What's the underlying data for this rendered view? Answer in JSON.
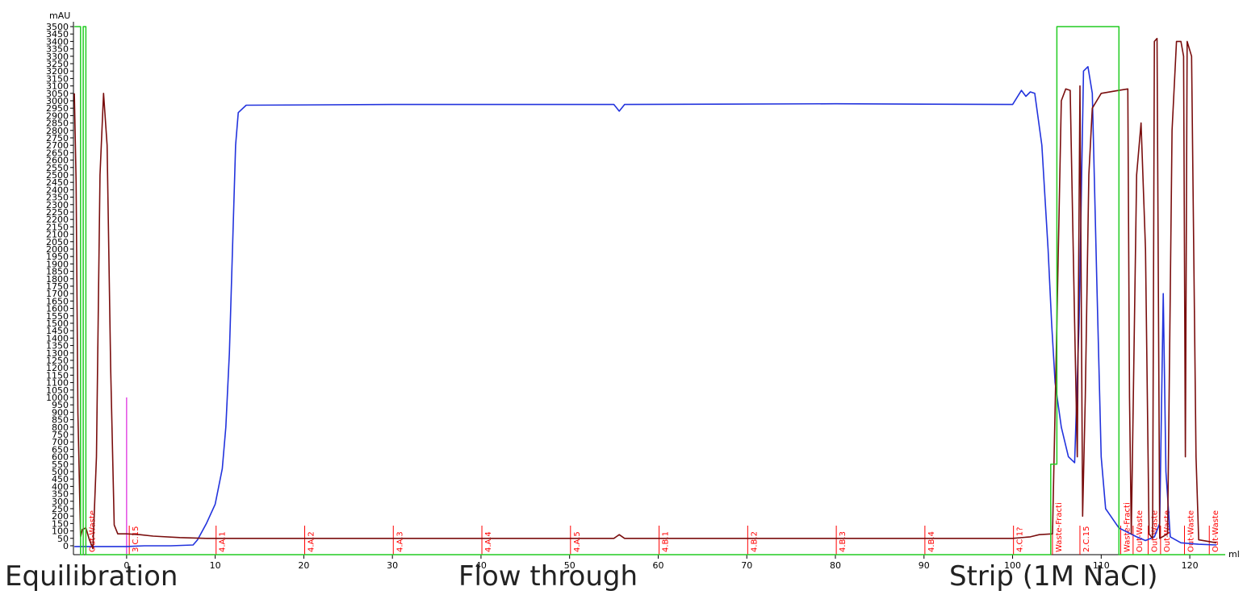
{
  "chart_data": {
    "type": "line",
    "y_unit": "mAU",
    "x_unit": "ml",
    "xlim": [
      -6,
      124
    ],
    "ylim": [
      -60,
      3500
    ],
    "y_ticks": [
      "0",
      "50",
      "100",
      "150",
      "200",
      "250",
      "300",
      "350",
      "400",
      "450",
      "500",
      "550",
      "600",
      "650",
      "700",
      "750",
      "800",
      "850",
      "900",
      "950",
      "1000",
      "1050",
      "1100",
      "1150",
      "1200",
      "1250",
      "1300",
      "1350",
      "1400",
      "1450",
      "1500",
      "1550",
      "1600",
      "1650",
      "1700",
      "1750",
      "1800",
      "1850",
      "1900",
      "1950",
      "2000",
      "2050",
      "2100",
      "2150",
      "2200",
      "2250",
      "2300",
      "2350",
      "2400",
      "2450",
      "2500",
      "2550",
      "2600",
      "2650",
      "2700",
      "2750",
      "2800",
      "2850",
      "2900",
      "2950",
      "3000",
      "3050",
      "3100",
      "3150",
      "3200",
      "3250",
      "3300",
      "3350",
      "3400",
      "3450",
      "3500"
    ],
    "x_ticks": [
      "0",
      "10",
      "20",
      "30",
      "40",
      "50",
      "60",
      "70",
      "80",
      "90",
      "100",
      "110",
      "120"
    ],
    "series": [
      {
        "color": "#2233dd",
        "points": [
          [
            -5.9,
            -5
          ],
          [
            -4.5,
            -5
          ],
          [
            -2,
            -5
          ],
          [
            0,
            -5
          ],
          [
            2,
            0
          ],
          [
            5,
            0
          ],
          [
            7.5,
            5
          ],
          [
            8,
            40
          ],
          [
            9,
            150
          ],
          [
            10,
            280
          ],
          [
            10.4,
            400
          ],
          [
            10.8,
            520
          ],
          [
            11.2,
            800
          ],
          [
            11.6,
            1300
          ],
          [
            12,
            2100
          ],
          [
            12.3,
            2700
          ],
          [
            12.6,
            2920
          ],
          [
            13.5,
            2970
          ],
          [
            30,
            2975
          ],
          [
            55,
            2975
          ],
          [
            55.6,
            2930
          ],
          [
            56.2,
            2975
          ],
          [
            80,
            2980
          ],
          [
            100,
            2975
          ],
          [
            101,
            3070
          ],
          [
            101.5,
            3030
          ],
          [
            102,
            3060
          ],
          [
            102.5,
            3050
          ],
          [
            103.3,
            2700
          ],
          [
            104,
            2000
          ],
          [
            104.4,
            1500
          ],
          [
            104.8,
            1100
          ],
          [
            105.5,
            800
          ],
          [
            106.3,
            600
          ],
          [
            107,
            560
          ],
          [
            107.5,
            1500
          ],
          [
            108,
            3200
          ],
          [
            108.5,
            3230
          ],
          [
            109,
            3050
          ],
          [
            109.5,
            1800
          ],
          [
            110,
            600
          ],
          [
            110.5,
            250
          ],
          [
            112,
            120
          ],
          [
            114,
            60
          ],
          [
            115,
            35
          ],
          [
            116,
            60
          ],
          [
            116.6,
            150
          ],
          [
            117,
            1700
          ],
          [
            117.3,
            500
          ],
          [
            117.8,
            60
          ],
          [
            119,
            20
          ],
          [
            121,
            10
          ],
          [
            123,
            5
          ]
        ]
      },
      {
        "color": "#7a0e0e",
        "points": [
          [
            -5.9,
            3050
          ],
          [
            -5.7,
            2450
          ],
          [
            -5.5,
            900
          ],
          [
            -5.2,
            60
          ],
          [
            -5,
            110
          ],
          [
            -4.6,
            120
          ],
          [
            -4.2,
            40
          ],
          [
            -3.8,
            -20
          ],
          [
            -3.4,
            600
          ],
          [
            -3,
            2500
          ],
          [
            -2.6,
            3050
          ],
          [
            -2.2,
            2700
          ],
          [
            -1.8,
            1200
          ],
          [
            -1.4,
            140
          ],
          [
            -1,
            80
          ],
          [
            0,
            80
          ],
          [
            1.5,
            75
          ],
          [
            3,
            65
          ],
          [
            6,
            55
          ],
          [
            9,
            50
          ],
          [
            30,
            50
          ],
          [
            55,
            50
          ],
          [
            55.6,
            75
          ],
          [
            56.2,
            50
          ],
          [
            100,
            50
          ],
          [
            102,
            60
          ],
          [
            103,
            75
          ],
          [
            104.5,
            80
          ],
          [
            105,
            1500
          ],
          [
            105.5,
            3000
          ],
          [
            106,
            3080
          ],
          [
            106.5,
            3070
          ],
          [
            107,
            1500
          ],
          [
            107.3,
            600
          ],
          [
            107.6,
            3100
          ],
          [
            107.9,
            200
          ],
          [
            108.2,
            1000
          ],
          [
            108.6,
            2500
          ],
          [
            109,
            2950
          ],
          [
            110,
            3050
          ],
          [
            112,
            3070
          ],
          [
            113,
            3080
          ],
          [
            113.2,
            1000
          ],
          [
            113.4,
            80
          ],
          [
            114,
            2500
          ],
          [
            114.5,
            2850
          ],
          [
            115,
            2000
          ],
          [
            115.4,
            80
          ],
          [
            115.8,
            50
          ],
          [
            116,
            3400
          ],
          [
            116.3,
            3420
          ],
          [
            116.6,
            50
          ],
          [
            117.5,
            80
          ],
          [
            118,
            2800
          ],
          [
            118.5,
            3400
          ],
          [
            119,
            3400
          ],
          [
            119.3,
            3300
          ],
          [
            119.5,
            600
          ],
          [
            119.7,
            3400
          ],
          [
            120.2,
            3300
          ],
          [
            120.7,
            600
          ],
          [
            121,
            40
          ],
          [
            123,
            20
          ]
        ]
      },
      {
        "color": "#22cc22",
        "points": [
          [
            -5.9,
            3500
          ],
          [
            -5.2,
            3500
          ],
          [
            -5.2,
            -60
          ],
          [
            -4.9,
            -60
          ],
          [
            -4.9,
            3500
          ],
          [
            -4.6,
            3500
          ],
          [
            -4.6,
            -60
          ],
          [
            104.3,
            -60
          ],
          [
            104.3,
            550
          ],
          [
            105,
            550
          ],
          [
            105,
            3500
          ],
          [
            112,
            3500
          ],
          [
            112,
            -60
          ],
          [
            124,
            -60
          ]
        ]
      }
    ],
    "marker": {
      "color": "#dd22dd",
      "x": 0,
      "y_top": 1000
    },
    "fractions": [
      {
        "x": -4.6,
        "label": "Out-Waste"
      },
      {
        "x": 0.3,
        "label": "3.C.15"
      },
      {
        "x": 10.1,
        "label": "4.A.1"
      },
      {
        "x": 20.1,
        "label": "4.A.2"
      },
      {
        "x": 30.1,
        "label": "4.A.3"
      },
      {
        "x": 40.1,
        "label": "4.A.4"
      },
      {
        "x": 50.1,
        "label": "4.A.5"
      },
      {
        "x": 60.1,
        "label": "4.B.1"
      },
      {
        "x": 70.1,
        "label": "4.B.2"
      },
      {
        "x": 80.1,
        "label": "4.B.3"
      },
      {
        "x": 90.1,
        "label": "4.B.4"
      },
      {
        "x": 100.1,
        "label": "4.C.1?"
      },
      {
        "x": 104.5,
        "label": "Waste-Fracti"
      },
      {
        "x": 107.6,
        "label": "2.C.15"
      },
      {
        "x": 112.2,
        "label": "Waste-Fracti"
      },
      {
        "x": 113.6,
        "label": "Out-Waste"
      },
      {
        "x": 115.3,
        "label": "Out-Waste"
      },
      {
        "x": 116.7,
        "label": "Out-Waste"
      },
      {
        "x": 119.4,
        "label": "Out-Waste"
      },
      {
        "x": 122.2,
        "label": "Out-Waste"
      }
    ]
  },
  "phases": [
    "Equilibration",
    "Flow through",
    "Strip (1M NaCl)"
  ]
}
